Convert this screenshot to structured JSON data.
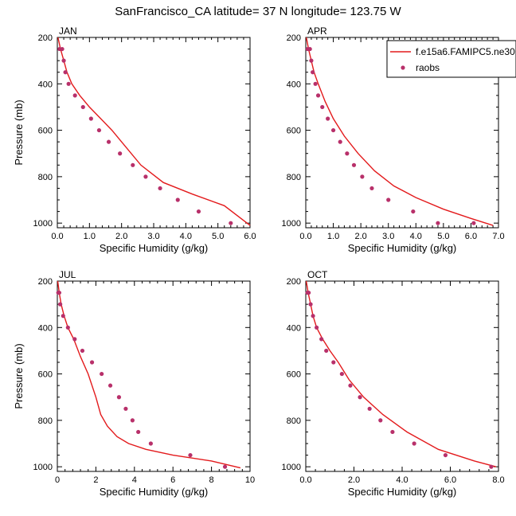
{
  "title": "SanFrancisco_CA  latitude= 37 N longitude= 123.75 W",
  "colors": {
    "model": "#e31a1c",
    "obs": "#b8306a",
    "axis": "#000000"
  },
  "legend": {
    "model_label": "f.e15a6.FAMIPC5.ne30",
    "obs_label": "raobs",
    "position": "top-right of APR panel"
  },
  "chart_data": [
    {
      "type": "line",
      "panel_label": "JAN",
      "xlabel": "Specific Humidity (g/kg)",
      "ylabel": "Pressure (mb)",
      "xlim": [
        0,
        6
      ],
      "ylim": [
        200,
        1020
      ],
      "x_ticks": [
        0,
        1,
        2,
        3,
        4,
        5,
        6
      ],
      "x_tick_labels": [
        "0.0",
        "1.0",
        "2.0",
        "3.0",
        "4.0",
        "5.0",
        "6.0"
      ],
      "y_ticks": [
        200,
        400,
        600,
        800,
        1000
      ],
      "y_tick_labels": [
        "200",
        "400",
        "600",
        "800",
        "1000"
      ],
      "series": [
        {
          "name": "f.e15a6.FAMIPC5.ne30",
          "kind": "line",
          "x": [
            0.02,
            0.1,
            0.2,
            0.3,
            0.45,
            0.7,
            1.0,
            1.35,
            1.7,
            2.0,
            2.6,
            3.3,
            4.2,
            5.2,
            6.0
          ],
          "y": [
            200,
            250,
            300,
            350,
            400,
            450,
            500,
            550,
            600,
            650,
            750,
            825,
            875,
            925,
            1010
          ]
        },
        {
          "name": "raobs",
          "kind": "scatter",
          "x": [
            0.07,
            0.15,
            0.2,
            0.25,
            0.35,
            0.55,
            0.8,
            1.05,
            1.3,
            1.6,
            1.95,
            2.35,
            2.75,
            3.2,
            3.75,
            4.4,
            5.4
          ],
          "y": [
            250,
            250,
            300,
            350,
            400,
            450,
            500,
            550,
            600,
            650,
            700,
            750,
            800,
            850,
            900,
            950,
            1000
          ]
        }
      ]
    },
    {
      "type": "line",
      "panel_label": "APR",
      "xlabel": "Specific Humidity (g/kg)",
      "ylabel": "",
      "xlim": [
        0,
        7
      ],
      "ylim": [
        200,
        1020
      ],
      "x_ticks": [
        0,
        1,
        2,
        3,
        4,
        5,
        6,
        7
      ],
      "x_tick_labels": [
        "0.0",
        "1.0",
        "2.0",
        "3.0",
        "4.0",
        "5.0",
        "6.0",
        "7.0"
      ],
      "y_ticks": [
        200,
        400,
        600,
        800,
        1000
      ],
      "y_tick_labels": [
        "200",
        "400",
        "600",
        "800",
        "1000"
      ],
      "series": [
        {
          "name": "f.e15a6.FAMIPC5.ne30",
          "kind": "line",
          "x": [
            0.02,
            0.1,
            0.2,
            0.3,
            0.45,
            0.7,
            1.0,
            1.4,
            1.9,
            2.5,
            3.2,
            4.0,
            5.0,
            6.0,
            6.8
          ],
          "y": [
            200,
            250,
            300,
            350,
            400,
            475,
            550,
            625,
            700,
            775,
            840,
            890,
            940,
            980,
            1010
          ]
        },
        {
          "name": "raobs",
          "kind": "scatter",
          "x": [
            0.07,
            0.15,
            0.2,
            0.25,
            0.35,
            0.45,
            0.6,
            0.8,
            1.0,
            1.25,
            1.5,
            1.75,
            2.05,
            2.4,
            3.0,
            3.9,
            4.8,
            6.1
          ],
          "y": [
            250,
            250,
            300,
            350,
            400,
            450,
            500,
            550,
            600,
            650,
            700,
            750,
            800,
            850,
            900,
            950,
            1000,
            1000
          ]
        }
      ]
    },
    {
      "type": "line",
      "panel_label": "JUL",
      "xlabel": "Specific Humidity (g/kg)",
      "ylabel": "Pressure (mb)",
      "xlim": [
        0,
        10
      ],
      "ylim": [
        200,
        1020
      ],
      "x_ticks": [
        0,
        2,
        4,
        6,
        8,
        10
      ],
      "x_tick_labels": [
        "0",
        "2",
        "4",
        "6",
        "8",
        "10"
      ],
      "y_ticks": [
        200,
        400,
        600,
        800,
        1000
      ],
      "y_tick_labels": [
        "200",
        "400",
        "600",
        "800",
        "1000"
      ],
      "series": [
        {
          "name": "f.e15a6.FAMIPC5.ne30",
          "kind": "line",
          "x": [
            0.02,
            0.1,
            0.2,
            0.35,
            0.55,
            0.85,
            1.2,
            1.6,
            2.0,
            2.25,
            2.6,
            3.1,
            3.7,
            4.6,
            6.0,
            8.0,
            9.5
          ],
          "y": [
            200,
            250,
            300,
            350,
            400,
            450,
            525,
            600,
            700,
            775,
            825,
            870,
            900,
            925,
            950,
            975,
            1005
          ]
        },
        {
          "name": "raobs",
          "kind": "scatter",
          "x": [
            0.05,
            0.1,
            0.15,
            0.3,
            0.55,
            0.9,
            1.3,
            1.8,
            2.3,
            2.75,
            3.2,
            3.55,
            3.9,
            4.2,
            4.85,
            6.9,
            8.7
          ],
          "y": [
            250,
            250,
            300,
            350,
            400,
            450,
            500,
            550,
            600,
            650,
            700,
            750,
            800,
            850,
            900,
            950,
            1000
          ]
        }
      ]
    },
    {
      "type": "line",
      "panel_label": "OCT",
      "xlabel": "Specific Humidity (g/kg)",
      "ylabel": "",
      "xlim": [
        0,
        8
      ],
      "ylim": [
        200,
        1020
      ],
      "x_ticks": [
        0,
        2,
        4,
        6,
        8
      ],
      "x_tick_labels": [
        "0.0",
        "2.0",
        "4.0",
        "6.0",
        "8.0"
      ],
      "y_ticks": [
        200,
        400,
        600,
        800,
        1000
      ],
      "y_tick_labels": [
        "200",
        "400",
        "600",
        "800",
        "1000"
      ],
      "series": [
        {
          "name": "f.e15a6.FAMIPC5.ne30",
          "kind": "line",
          "x": [
            0.02,
            0.1,
            0.2,
            0.3,
            0.45,
            0.7,
            1.0,
            1.35,
            1.8,
            2.4,
            3.2,
            4.2,
            5.5,
            7.0,
            7.9
          ],
          "y": [
            200,
            250,
            300,
            350,
            400,
            450,
            500,
            550,
            625,
            700,
            775,
            850,
            925,
            975,
            1000
          ]
        },
        {
          "name": "raobs",
          "kind": "scatter",
          "x": [
            0.07,
            0.12,
            0.2,
            0.3,
            0.45,
            0.65,
            0.85,
            1.15,
            1.5,
            1.85,
            2.25,
            2.65,
            3.1,
            3.6,
            4.5,
            5.8,
            7.7
          ],
          "y": [
            250,
            250,
            300,
            350,
            400,
            450,
            500,
            550,
            600,
            650,
            700,
            750,
            800,
            850,
            900,
            950,
            1000
          ]
        }
      ]
    }
  ]
}
